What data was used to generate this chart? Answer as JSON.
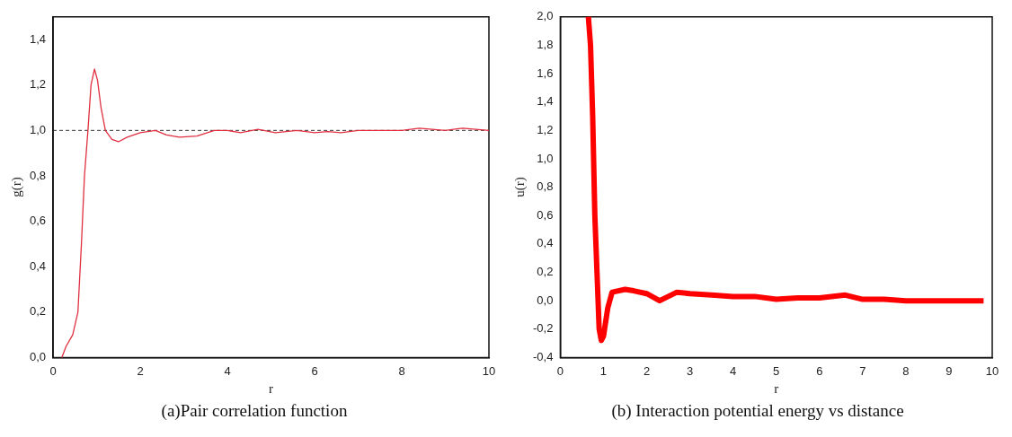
{
  "chart_data": [
    {
      "type": "line",
      "title": "(a)Pair correlation function",
      "xlabel": "r",
      "ylabel": "g(r)",
      "grid": false,
      "legend": false,
      "marker": "none",
      "line_style": "solid",
      "xlim": [
        0,
        10
      ],
      "xticks": [
        0,
        2,
        4,
        6,
        8,
        10
      ],
      "ylim": [
        0,
        1.5
      ],
      "yticks": [
        {
          "value": 0,
          "label": "0,0"
        },
        {
          "value": 0.2,
          "label": "0,2"
        },
        {
          "value": 0.4,
          "label": "0,4"
        },
        {
          "value": 0.6,
          "label": "0,6"
        },
        {
          "value": 0.8,
          "label": "0,8"
        },
        {
          "value": 1,
          "label": "1,0"
        },
        {
          "value": 1.2,
          "label": "1,2"
        },
        {
          "value": 1.4,
          "label": "1,4"
        }
      ],
      "ref_lines": [
        {
          "axis": "y",
          "value": 1,
          "color": "#333333",
          "line_style": "dashed"
        }
      ],
      "series": [
        {
          "color": "#e03040",
          "x": [
            0.2,
            0.3,
            0.45,
            0.57,
            0.65,
            0.72,
            0.8,
            0.87,
            0.95,
            1.02,
            1.1,
            1.2,
            1.35,
            1.5,
            1.7,
            2.0,
            2.35,
            2.6,
            2.9,
            3.3,
            3.7,
            4.0,
            4.3,
            4.7,
            5.1,
            5.6,
            6.0,
            6.3,
            6.6,
            7.0,
            7.5,
            8.0,
            8.4,
            9.0,
            9.4,
            10.0
          ],
          "values": [
            0,
            0.05,
            0.1,
            0.2,
            0.5,
            0.8,
            1.0,
            1.2,
            1.27,
            1.22,
            1.1,
            1.0,
            0.96,
            0.95,
            0.97,
            0.99,
            1.0,
            0.98,
            0.97,
            0.975,
            1.0,
            1.0,
            0.99,
            1.005,
            0.99,
            1.0,
            0.99,
            0.995,
            0.99,
            1.0,
            1.0,
            1.0,
            1.01,
            1.0,
            1.01,
            1.0
          ]
        }
      ]
    },
    {
      "type": "line",
      "title": "(b) Interaction potential energy vs distance",
      "xlabel": "r",
      "ylabel": "u(r)",
      "grid": false,
      "legend": false,
      "marker": "none",
      "line_style": "solid",
      "xlim": [
        0,
        10
      ],
      "xticks": [
        0,
        1,
        2,
        3,
        4,
        5,
        6,
        7,
        8,
        9,
        10
      ],
      "ylim": [
        -0.4,
        2.0
      ],
      "yticks": [
        {
          "value": -0.4,
          "label": "-0,4"
        },
        {
          "value": -0.2,
          "label": "-0,2"
        },
        {
          "value": 0,
          "label": "0,0"
        },
        {
          "value": 0.2,
          "label": "0,2"
        },
        {
          "value": 0.4,
          "label": "0,4"
        },
        {
          "value": 0.6,
          "label": "0,6"
        },
        {
          "value": 0.8,
          "label": "0,8"
        },
        {
          "value": 1,
          "label": "1,0"
        },
        {
          "value": 1.2,
          "label": "1,2"
        },
        {
          "value": 1.4,
          "label": "1,4"
        },
        {
          "value": 1.6,
          "label": "1,6"
        },
        {
          "value": 1.8,
          "label": "1,8"
        },
        {
          "value": 2,
          "label": "2,0"
        }
      ],
      "series": [
        {
          "color": "#ff0000",
          "x": [
            0.65,
            0.7,
            0.75,
            0.8,
            0.85,
            0.9,
            0.95,
            1.0,
            1.1,
            1.2,
            1.5,
            1.7,
            2.0,
            2.3,
            2.7,
            3.0,
            3.5,
            4.0,
            4.5,
            5.0,
            5.5,
            6.0,
            6.6,
            7.0,
            7.5,
            8.0,
            8.5,
            9.0,
            9.8
          ],
          "values": [
            2.0,
            1.8,
            1.3,
            0.6,
            0.2,
            -0.2,
            -0.28,
            -0.25,
            -0.05,
            0.06,
            0.08,
            0.07,
            0.05,
            0.0,
            0.06,
            0.05,
            0.04,
            0.03,
            0.03,
            0.01,
            0.02,
            0.02,
            0.04,
            0.01,
            0.01,
            0.0,
            0.0,
            0.0,
            0.0
          ]
        }
      ]
    }
  ]
}
